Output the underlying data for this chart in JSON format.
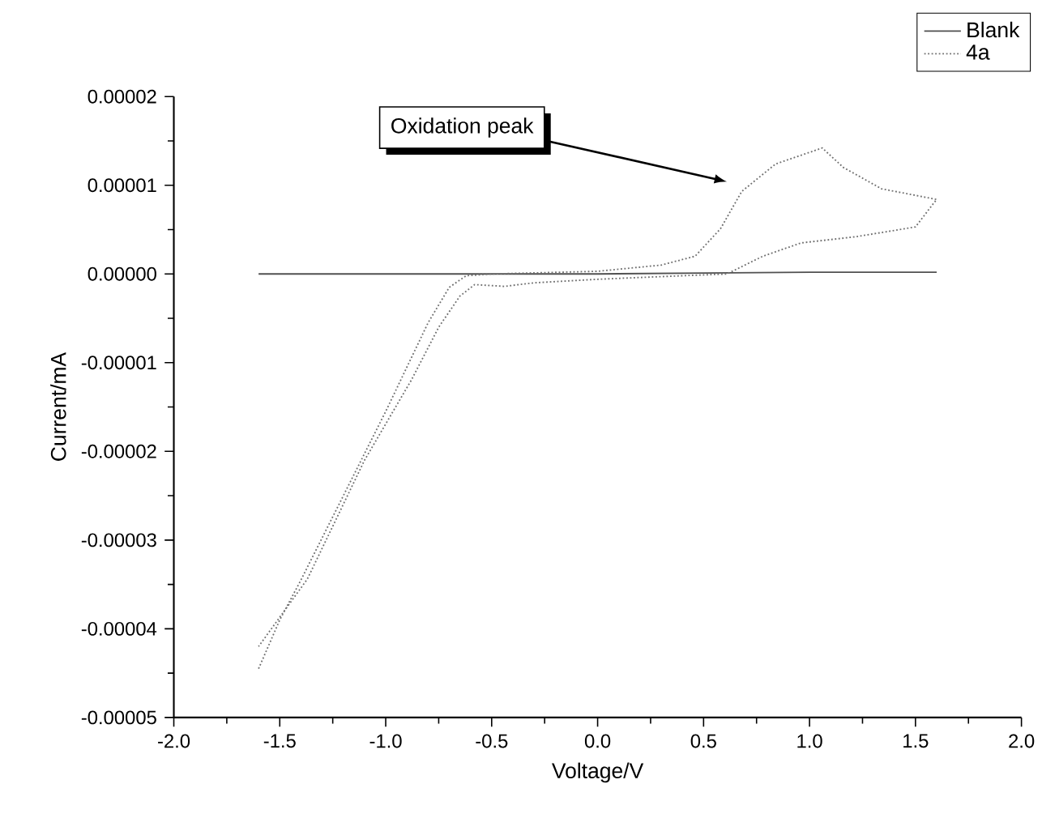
{
  "chart_data": {
    "type": "line",
    "xlabel": "Voltage/V",
    "ylabel": "Current/mA",
    "xlim": [
      -2.0,
      2.0
    ],
    "ylim": [
      -5e-05,
      2e-05
    ],
    "xticks": [
      {
        "value": -2.0,
        "label": "-2.0"
      },
      {
        "value": -1.5,
        "label": "-1.5"
      },
      {
        "value": -1.0,
        "label": "-1.0"
      },
      {
        "value": -0.5,
        "label": "-0.5"
      },
      {
        "value": 0.0,
        "label": "0.0"
      },
      {
        "value": 0.5,
        "label": "0.5"
      },
      {
        "value": 1.0,
        "label": "1.0"
      },
      {
        "value": 1.5,
        "label": "1.5"
      },
      {
        "value": 2.0,
        "label": "2.0"
      }
    ],
    "yticks": [
      {
        "value": -5e-05,
        "label": "-0.00005"
      },
      {
        "value": -4e-05,
        "label": "-0.00004"
      },
      {
        "value": -3e-05,
        "label": "-0.00003"
      },
      {
        "value": -2e-05,
        "label": "-0.00002"
      },
      {
        "value": -1e-05,
        "label": "-0.00001"
      },
      {
        "value": 0.0,
        "label": "0.00000"
      },
      {
        "value": 1e-05,
        "label": "0.00001"
      },
      {
        "value": 2e-05,
        "label": "0.00002"
      }
    ],
    "legend": "top right",
    "grid": false,
    "marker": "none",
    "series": [
      {
        "name": "Blank",
        "color": "#505050",
        "line_style": "solid",
        "x": [
          -1.6,
          -1.0,
          -0.5,
          0.0,
          0.5,
          1.0,
          1.6
        ],
        "values": [
          0.0,
          0.0,
          0.0,
          0.0,
          1e-07,
          2e-07,
          2e-07
        ]
      },
      {
        "name": "4a",
        "color": "#707070",
        "line_style": "dotted",
        "x": [
          -1.6,
          -1.5,
          -1.4,
          -1.2,
          -1.0,
          -0.9,
          -0.8,
          -0.7,
          -0.62,
          -0.5,
          0.0,
          0.3,
          0.46,
          0.58,
          0.68,
          0.84,
          1.06,
          1.16,
          1.34,
          1.6,
          1.58,
          1.5,
          1.22,
          0.96,
          0.78,
          0.61,
          0.3,
          0.0,
          -0.3,
          -0.44,
          -0.58,
          -0.65,
          -0.75,
          -0.88,
          -1.1,
          -1.37,
          -1.6
        ],
        "values": [
          -4.45e-05,
          -3.9e-05,
          -3.45e-05,
          -2.5e-05,
          -1.55e-05,
          -1.05e-05,
          -5.5e-06,
          -1.5e-06,
          -2e-07,
          0.0,
          3e-07,
          1e-06,
          2e-06,
          5.1e-06,
          9.3e-06,
          1.24e-05,
          1.42e-05,
          1.2e-05,
          9.6e-06,
          8.4e-06,
          7.8e-06,
          5.3e-06,
          4.2e-06,
          3.5e-06,
          2e-06,
          0.0,
          -3e-07,
          -6e-07,
          -1e-06,
          -1.4e-06,
          -1.2e-06,
          -2.5e-06,
          -6e-06,
          -1.2e-05,
          -2.1e-05,
          -3.44e-05,
          -4.2e-05
        ]
      }
    ],
    "annotations": [
      "Oxidation peak"
    ]
  }
}
